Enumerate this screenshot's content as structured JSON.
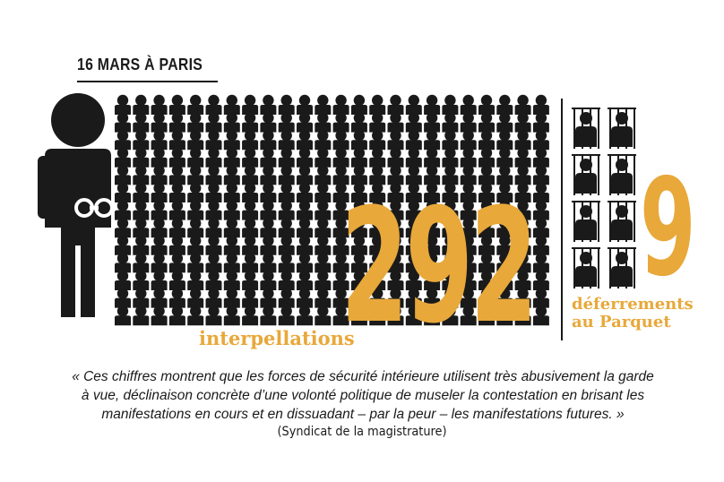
{
  "headline": "16 MARS À PARIS",
  "arrests": {
    "value": "292",
    "label": "interpellations"
  },
  "referrals": {
    "value": "9",
    "label_line1": "déferrements",
    "label_line2": "au Parquet"
  },
  "quote": {
    "line1": "« Ces chiffres montrent que les forces de sécurité intérieure utilisent très abusivement la garde",
    "line2": "à vue, déclinaison concrète d’une volonté politique de museler la contestation en brisant les",
    "line3": "manifestations en cours et en dissuadant – par la peur – les manifestations futures. »",
    "source": "(Syndicat de la magistrature)"
  },
  "colors": {
    "accent": "#E8A83A",
    "ink": "#1a1a1a",
    "background": "#ffffff"
  },
  "icons": {
    "big_figure": "handcuffed-person-icon",
    "crowd_figure": "person-icon",
    "prisoner": "person-behind-bars-icon"
  }
}
